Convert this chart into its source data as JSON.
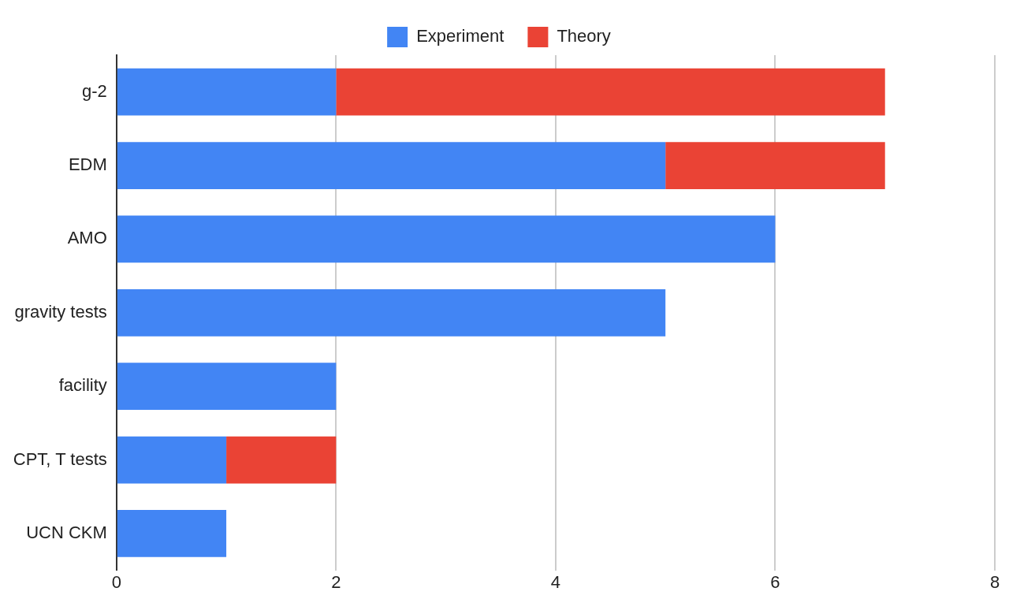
{
  "chart_data": {
    "type": "bar",
    "orientation": "horizontal",
    "stacked": true,
    "categories": [
      "g-2",
      "EDM",
      "AMO",
      "gravity tests",
      "facility",
      "CPT, T tests",
      "UCN CKM"
    ],
    "series": [
      {
        "name": "Experiment",
        "color": "#4285f4",
        "values": [
          2,
          5,
          6,
          5,
          2,
          1,
          1
        ]
      },
      {
        "name": "Theory",
        "color": "#ea4335",
        "values": [
          5,
          2,
          0,
          0,
          0,
          1,
          0
        ]
      }
    ],
    "xlim": [
      0,
      8
    ],
    "xticks": [
      0,
      2,
      4,
      6,
      8
    ],
    "grid": "x",
    "legend": "top"
  }
}
